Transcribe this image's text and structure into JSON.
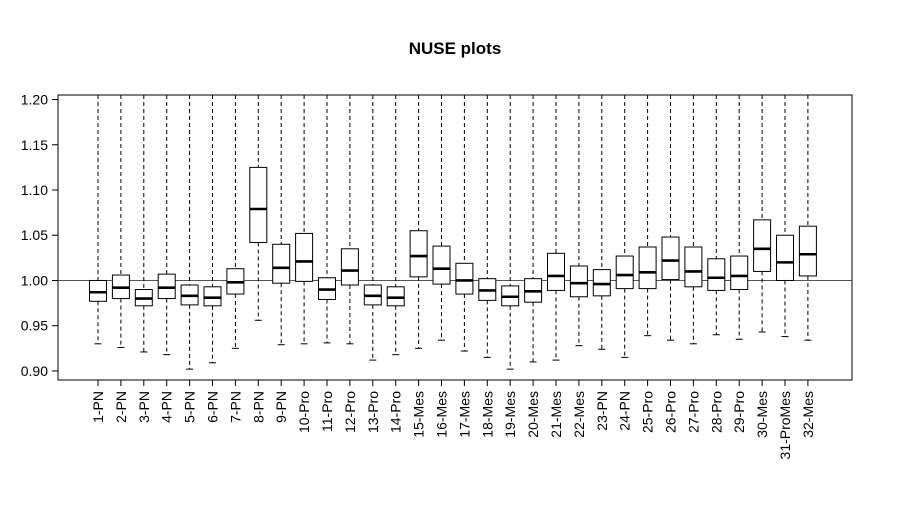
{
  "chart_data": {
    "type": "boxplot",
    "title": "NUSE plots",
    "xlabel": "",
    "ylabel": "",
    "ylim": [
      0.89,
      1.205
    ],
    "yticks": [
      0.9,
      0.95,
      1.0,
      1.05,
      1.1,
      1.15,
      1.2
    ],
    "ytick_labels": [
      "0.90",
      "0.95",
      "1.00",
      "1.05",
      "1.10",
      "1.15",
      "1.20"
    ],
    "reference_line": 1.0,
    "grid": false,
    "categories": [
      "1-PN",
      "2-PN",
      "3-PN",
      "4-PN",
      "5-PN",
      "6-PN",
      "7-PN",
      "8-PN",
      "9-PN",
      "10-Pro",
      "11-Pro",
      "12-Pro",
      "13-Pro",
      "14-Pro",
      "15-Mes",
      "16-Mes",
      "17-Mes",
      "18-Mes",
      "19-Mes",
      "20-Mes",
      "21-Mes",
      "22-Mes",
      "23-PN",
      "24-PN",
      "25-Pro",
      "26-Pro",
      "27-Pro",
      "28-Pro",
      "29-Pro",
      "30-Mes",
      "31-ProMes",
      "32-Mes"
    ],
    "boxes": [
      {
        "min": 0.93,
        "q1": 0.977,
        "median": 0.987,
        "q3": 1.0,
        "max": 1.205
      },
      {
        "min": 0.926,
        "q1": 0.98,
        "median": 0.992,
        "q3": 1.006,
        "max": 1.205
      },
      {
        "min": 0.921,
        "q1": 0.972,
        "median": 0.98,
        "q3": 0.99,
        "max": 1.205
      },
      {
        "min": 0.918,
        "q1": 0.98,
        "median": 0.992,
        "q3": 1.007,
        "max": 1.205
      },
      {
        "min": 0.902,
        "q1": 0.973,
        "median": 0.983,
        "q3": 0.995,
        "max": 1.205
      },
      {
        "min": 0.909,
        "q1": 0.972,
        "median": 0.981,
        "q3": 0.993,
        "max": 1.205
      },
      {
        "min": 0.925,
        "q1": 0.985,
        "median": 0.998,
        "q3": 1.013,
        "max": 1.205
      },
      {
        "min": 0.956,
        "q1": 1.042,
        "median": 1.079,
        "q3": 1.125,
        "max": 1.205
      },
      {
        "min": 0.929,
        "q1": 0.997,
        "median": 1.014,
        "q3": 1.04,
        "max": 1.205
      },
      {
        "min": 0.93,
        "q1": 0.999,
        "median": 1.021,
        "q3": 1.052,
        "max": 1.205
      },
      {
        "min": 0.931,
        "q1": 0.979,
        "median": 0.99,
        "q3": 1.003,
        "max": 1.205
      },
      {
        "min": 0.93,
        "q1": 0.995,
        "median": 1.011,
        "q3": 1.035,
        "max": 1.205
      },
      {
        "min": 0.912,
        "q1": 0.973,
        "median": 0.983,
        "q3": 0.995,
        "max": 1.205
      },
      {
        "min": 0.918,
        "q1": 0.972,
        "median": 0.981,
        "q3": 0.993,
        "max": 1.205
      },
      {
        "min": 0.925,
        "q1": 1.004,
        "median": 1.027,
        "q3": 1.055,
        "max": 1.205
      },
      {
        "min": 0.934,
        "q1": 0.996,
        "median": 1.013,
        "q3": 1.038,
        "max": 1.205
      },
      {
        "min": 0.922,
        "q1": 0.985,
        "median": 1.0,
        "q3": 1.019,
        "max": 1.205
      },
      {
        "min": 0.915,
        "q1": 0.978,
        "median": 0.989,
        "q3": 1.002,
        "max": 1.205
      },
      {
        "min": 0.902,
        "q1": 0.972,
        "median": 0.982,
        "q3": 0.994,
        "max": 1.205
      },
      {
        "min": 0.91,
        "q1": 0.976,
        "median": 0.988,
        "q3": 1.002,
        "max": 1.205
      },
      {
        "min": 0.912,
        "q1": 0.989,
        "median": 1.005,
        "q3": 1.03,
        "max": 1.205
      },
      {
        "min": 0.928,
        "q1": 0.982,
        "median": 0.997,
        "q3": 1.016,
        "max": 1.205
      },
      {
        "min": 0.924,
        "q1": 0.983,
        "median": 0.996,
        "q3": 1.012,
        "max": 1.205
      },
      {
        "min": 0.915,
        "q1": 0.991,
        "median": 1.006,
        "q3": 1.027,
        "max": 1.205
      },
      {
        "min": 0.939,
        "q1": 0.991,
        "median": 1.009,
        "q3": 1.037,
        "max": 1.205
      },
      {
        "min": 0.934,
        "q1": 1.001,
        "median": 1.022,
        "q3": 1.048,
        "max": 1.205
      },
      {
        "min": 0.93,
        "q1": 0.993,
        "median": 1.01,
        "q3": 1.037,
        "max": 1.205
      },
      {
        "min": 0.94,
        "q1": 0.989,
        "median": 1.003,
        "q3": 1.024,
        "max": 1.205
      },
      {
        "min": 0.935,
        "q1": 0.99,
        "median": 1.005,
        "q3": 1.027,
        "max": 1.205
      },
      {
        "min": 0.943,
        "q1": 1.01,
        "median": 1.035,
        "q3": 1.067,
        "max": 1.205
      },
      {
        "min": 0.938,
        "q1": 1.0,
        "median": 1.02,
        "q3": 1.05,
        "max": 1.205
      },
      {
        "min": 0.934,
        "q1": 1.005,
        "median": 1.029,
        "q3": 1.06,
        "max": 1.205
      }
    ],
    "colors": {
      "stroke": "#000000",
      "box_fill": "#ffffff",
      "reference_line": "#555555"
    }
  }
}
